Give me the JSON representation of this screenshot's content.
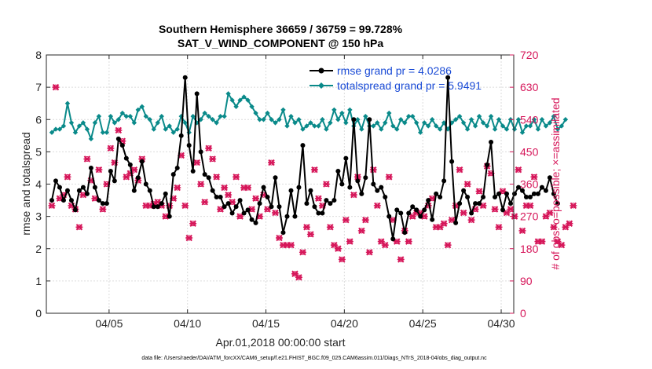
{
  "chart_data": {
    "type": "line",
    "title": "Southern Hemisphere 36659 / 36759 = 99.728%",
    "subtitle": "SAT_V_WIND_COMPONENT @ 150 hPa",
    "xlabel": "Apr.01,2018 00:00:00 start",
    "ylabel": "rmse and totalspread",
    "y2label": "# of obs: o=possible; ×=assimilated",
    "footnote": "data file: /Users/raeder/DAI/ATM_forcXX/CAM6_setup/f.e21.FHIST_BGC.f09_025.CAM6assim.011/Diags_NTrS_2018-04/obs_diag_output.nc",
    "xlim": [
      1,
      30.8
    ],
    "ylim": [
      0,
      8
    ],
    "y2lim": [
      0,
      720
    ],
    "xticks": [
      5,
      10,
      15,
      20,
      25,
      30
    ],
    "xtick_labels": [
      "04/05",
      "04/10",
      "04/15",
      "04/20",
      "04/25",
      "04/30"
    ],
    "yticks": [
      0,
      1,
      2,
      3,
      4,
      5,
      6,
      7,
      8
    ],
    "y2ticks": [
      0,
      90,
      180,
      270,
      360,
      450,
      540,
      630,
      720
    ],
    "colors": {
      "rmse": "#000000",
      "spread": "#0a8a8a",
      "obs": "#d6175a",
      "legend_text": "#1a4bd6"
    },
    "series": [
      {
        "name": "rmse grand pr = 4.0286",
        "values": [
          3.5,
          4.1,
          3.9,
          3.5,
          3.8,
          3.5,
          3.2,
          3.8,
          3.9,
          3.7,
          4.5,
          3.9,
          3.5,
          3.4,
          3.4,
          4.4,
          4.1,
          5.4,
          5.2,
          4.8,
          4.6,
          3.8,
          4.2,
          4.7,
          4.0,
          3.8,
          3.3,
          3.3,
          3.4,
          3.7,
          3.0,
          4.3,
          4.5,
          5.5,
          7.3,
          5.2,
          4.4,
          6.8,
          5.0,
          4.3,
          4.2,
          3.8,
          3.6,
          3.6,
          3.3,
          3.4,
          3.1,
          3.3,
          3.5,
          3.1,
          3.2,
          2.9,
          2.8,
          3.4,
          3.9,
          3.6,
          3.3,
          4.2,
          3.3,
          2.5,
          3.0,
          3.8,
          3.0,
          3.9,
          5.2,
          3.4,
          3.8,
          3.3,
          3.1,
          3.1,
          3.5,
          3.4,
          3.5,
          4.4,
          4.0,
          4.8,
          3.9,
          6.0,
          4.1,
          3.7,
          4.2,
          6.0,
          4.0,
          3.8,
          3.9,
          3.6,
          3.0,
          2.3,
          3.2,
          3.1,
          2.5,
          3.1,
          3.3,
          3.2,
          3.0,
          3.2,
          3.5,
          2.9,
          3.7,
          3.6,
          4.1,
          7.3,
          4.7,
          2.8,
          3.4,
          3.8,
          3.6,
          3.1,
          3.4,
          3.4,
          3.6,
          4.6,
          5.3,
          3.6,
          3.7,
          3.2,
          3.7,
          3.4,
          3.7,
          3.9,
          3.8,
          3.6,
          3.6,
          3.7,
          3.7,
          3.9,
          3.8,
          4.2,
          3.7,
          3.4
        ],
        "marker": "circle"
      },
      {
        "name": "totalspread grand pr = 5.9491",
        "values": [
          5.6,
          5.7,
          5.7,
          5.8,
          6.5,
          5.9,
          5.6,
          5.8,
          5.9,
          5.7,
          5.4,
          5.9,
          6.1,
          5.6,
          5.6,
          6.1,
          5.9,
          6.0,
          6.2,
          6.1,
          6.1,
          5.9,
          6.3,
          6.4,
          6.1,
          6.0,
          5.7,
          5.9,
          6.1,
          5.7,
          5.8,
          5.6,
          5.7,
          6.1,
          5.9,
          5.6,
          6.1,
          5.9,
          6.0,
          6.2,
          6.1,
          6.0,
          5.9,
          6.1,
          6.1,
          6.8,
          6.6,
          6.4,
          6.6,
          6.7,
          6.6,
          6.4,
          6.2,
          6.0,
          6.0,
          6.2,
          6.0,
          5.9,
          6.0,
          6.3,
          5.8,
          6.1,
          5.9,
          6.0,
          5.7,
          5.8,
          5.9,
          5.8,
          5.8,
          6.0,
          5.7,
          5.9,
          6.3,
          6.0,
          6.2,
          5.9,
          6.3,
          5.8,
          6.0,
          5.7,
          6.1,
          5.8,
          5.8,
          5.9,
          5.7,
          5.9,
          6.2,
          5.8,
          5.7,
          6.0,
          5.9,
          6.1,
          6.1,
          5.9,
          5.6,
          5.9,
          5.8,
          6.0,
          5.8,
          5.7,
          5.9,
          5.7,
          5.9,
          6.0,
          6.1,
          5.9,
          5.7,
          6.0,
          5.8,
          6.1,
          5.9,
          5.8,
          6.1,
          5.7,
          6.0,
          5.8,
          5.7,
          6.0,
          5.7,
          6.0,
          5.6,
          5.8,
          5.8,
          6.0,
          5.7,
          6.0,
          5.8,
          5.9,
          6.1,
          5.7,
          5.8,
          6.0
        ],
        "marker": "diamond"
      }
    ],
    "obs_assimilated": {
      "name": "# of obs assimilated",
      "values": [
        300,
        630,
        320,
        330,
        380,
        300,
        290,
        240,
        330,
        430,
        370,
        320,
        400,
        290,
        360,
        460,
        420,
        510,
        480,
        380,
        390,
        400,
        370,
        430,
        300,
        300,
        305,
        310,
        300,
        270,
        300,
        320,
        350,
        440,
        300,
        210,
        250,
        420,
        360,
        310,
        460,
        430,
        380,
        290,
        350,
        330,
        310,
        380,
        270,
        350,
        350,
        290,
        320,
        270,
        330,
        290,
        420,
        280,
        210,
        190,
        190,
        190,
        110,
        100,
        170,
        240,
        220,
        400,
        320,
        300,
        360,
        240,
        190,
        180,
        150,
        260,
        200,
        330,
        380,
        230,
        260,
        170,
        400,
        300,
        200,
        190,
        380,
        260,
        200,
        150,
        230,
        200,
        270,
        280,
        280,
        270,
        300,
        320,
        240,
        240,
        250,
        190,
        260,
        300,
        400,
        280,
        360,
        260,
        290,
        340,
        300,
        410,
        390,
        290,
        240,
        340,
        280,
        290,
        270,
        400,
        230,
        300,
        300,
        380,
        200,
        200,
        270,
        280,
        240,
        200,
        190,
        240,
        250,
        300
      ],
      "marker": "x"
    },
    "obs_possible": {
      "name": "# of obs possible",
      "values": [
        300,
        630,
        320,
        330,
        380,
        300,
        290,
        240,
        330,
        430,
        370,
        320,
        400,
        290,
        360,
        460,
        420,
        510,
        480,
        380,
        390,
        400,
        370,
        430,
        300,
        300,
        305,
        310,
        300,
        270,
        300,
        320,
        350,
        440,
        300,
        210,
        250,
        420,
        360,
        310,
        460,
        430,
        380,
        290,
        350,
        330,
        310,
        380,
        270,
        350,
        350,
        290,
        320,
        270,
        330,
        290,
        420,
        280,
        210,
        190,
        190,
        190,
        110,
        100,
        170,
        240,
        220,
        400,
        320,
        300,
        360,
        240,
        190,
        180,
        150,
        260,
        200,
        330,
        380,
        230,
        260,
        170,
        400,
        300,
        200,
        190,
        380,
        260,
        200,
        150,
        230,
        200,
        270,
        280,
        280,
        270,
        300,
        320,
        240,
        240,
        250,
        190,
        260,
        300,
        400,
        280,
        360,
        260,
        290,
        340,
        300,
        410,
        390,
        290,
        240,
        340,
        280,
        290,
        270,
        400,
        230,
        300,
        300,
        380,
        200,
        200,
        270,
        280,
        240,
        200,
        190,
        240,
        250,
        300
      ],
      "marker": "o"
    }
  }
}
